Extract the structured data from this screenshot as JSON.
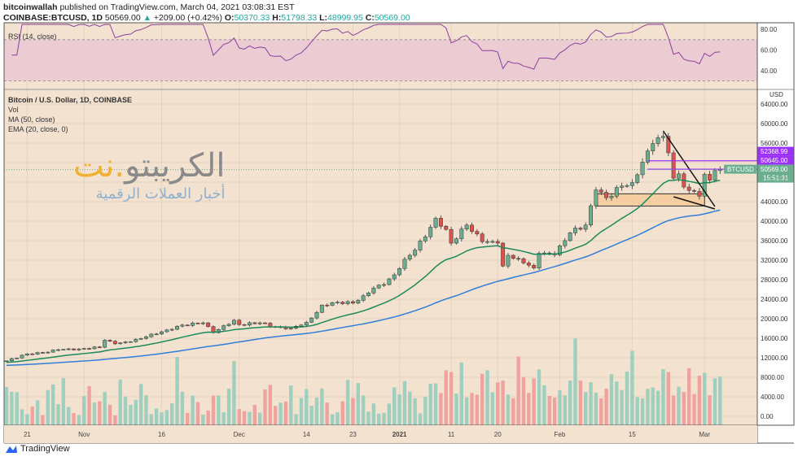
{
  "header": {
    "author": "bitcoinwallah",
    "published": "published on TradingView.com, March 04, 2021 03:08:31 EST",
    "symbol": "COINBASE:BTCUSD, 1D",
    "last": "50569.00",
    "change": "+209.00 (+0.42%)",
    "o_label": "O:",
    "o": "50370.33",
    "h_label": "H:",
    "h": "51798.33",
    "l_label": "L:",
    "l": "48999.95",
    "c_label": "C:",
    "c": "50569.00"
  },
  "legend": {
    "rsi": "RSI (14, close)",
    "title": "Bitcoin / U.S. Dollar, 1D, COINBASE",
    "vol": "Vol",
    "ma": "MA (50, close)",
    "ema": "EMA (20, close, 0)"
  },
  "footer": {
    "brand": "TradingView"
  },
  "watermark": {
    "line1": "الكريبتو.نت",
    "line2": "أخبار العملات الرقمية"
  },
  "colors": {
    "up": "#6aae8f",
    "down": "#d9534f",
    "ma": "#2f7ed8",
    "ema": "#1a8a5a",
    "rsi": "#8e3fa0",
    "marker": "#9b30ff",
    "bg": "#f3e2d0"
  },
  "chart_data": {
    "type": "candlestick",
    "currency": "USD",
    "ylim": [
      0,
      66000
    ],
    "price_ticks": [
      0,
      4000,
      8000,
      12000,
      16000,
      20000,
      24000,
      28000,
      32000,
      36000,
      40000,
      44000,
      48000,
      52000,
      56000,
      60000,
      64000
    ],
    "rsi_ticks": [
      40,
      60,
      80
    ],
    "x_ticks": [
      {
        "date": "2020-10-21",
        "label": "21"
      },
      {
        "date": "2020-11-01",
        "label": "Nov"
      },
      {
        "date": "2020-11-16",
        "label": "16"
      },
      {
        "date": "2020-12-01",
        "label": "Dec"
      },
      {
        "date": "2020-12-14",
        "label": "14"
      },
      {
        "date": "2020-12-23",
        "label": "23"
      },
      {
        "date": "2021-01-01",
        "label": "2021"
      },
      {
        "date": "2021-01-11",
        "label": "11"
      },
      {
        "date": "2021-01-20",
        "label": "20"
      },
      {
        "date": "2021-02-01",
        "label": "Feb"
      },
      {
        "date": "2021-02-15",
        "label": "15"
      },
      {
        "date": "2021-03-01",
        "label": "Mar"
      }
    ],
    "start": "2020-10-17",
    "end": "2021-03-04",
    "close_keypoints": [
      [
        "2020-10-17",
        11360
      ],
      [
        "2020-10-21",
        12800
      ],
      [
        "2020-10-24",
        13000
      ],
      [
        "2020-10-27",
        13650
      ],
      [
        "2020-10-31",
        13800
      ],
      [
        "2020-11-04",
        14150
      ],
      [
        "2020-11-05",
        15600
      ],
      [
        "2020-11-07",
        14850
      ],
      [
        "2020-11-10",
        15300
      ],
      [
        "2020-11-13",
        16300
      ],
      [
        "2020-11-17",
        17700
      ],
      [
        "2020-11-20",
        18700
      ],
      [
        "2020-11-24",
        19150
      ],
      [
        "2020-11-26",
        17150
      ],
      [
        "2020-11-30",
        19700
      ],
      [
        "2020-12-01",
        18800
      ],
      [
        "2020-12-05",
        19150
      ],
      [
        "2020-12-08",
        18300
      ],
      [
        "2020-12-11",
        18050
      ],
      [
        "2020-12-14",
        19270
      ],
      [
        "2020-12-16",
        21300
      ],
      [
        "2020-12-17",
        22800
      ],
      [
        "2020-12-20",
        23400
      ],
      [
        "2020-12-23",
        23200
      ],
      [
        "2020-12-25",
        24700
      ],
      [
        "2020-12-27",
        26300
      ],
      [
        "2020-12-29",
        27000
      ],
      [
        "2020-12-31",
        29000
      ],
      [
        "2021-01-02",
        32200
      ],
      [
        "2021-01-03",
        33000
      ],
      [
        "2021-01-06",
        36800
      ],
      [
        "2021-01-08",
        40600
      ],
      [
        "2021-01-10",
        38300
      ],
      [
        "2021-01-11",
        35500
      ],
      [
        "2021-01-14",
        39200
      ],
      [
        "2021-01-17",
        35800
      ],
      [
        "2021-01-20",
        35500
      ],
      [
        "2021-01-21",
        30800
      ],
      [
        "2021-01-22",
        33000
      ],
      [
        "2021-01-24",
        32300
      ],
      [
        "2021-01-27",
        30400
      ],
      [
        "2021-01-28",
        33400
      ],
      [
        "2021-01-31",
        33100
      ],
      [
        "2021-02-03",
        37600
      ],
      [
        "2021-02-06",
        39200
      ],
      [
        "2021-02-08",
        46400
      ],
      [
        "2021-02-10",
        44800
      ],
      [
        "2021-02-13",
        47200
      ],
      [
        "2021-02-15",
        47900
      ],
      [
        "2021-02-17",
        52100
      ],
      [
        "2021-02-19",
        55900
      ],
      [
        "2021-02-21",
        57400
      ],
      [
        "2021-02-22",
        54000
      ],
      [
        "2021-02-23",
        48800
      ],
      [
        "2021-02-24",
        49700
      ],
      [
        "2021-02-25",
        47000
      ],
      [
        "2021-02-26",
        46300
      ],
      [
        "2021-02-27",
        46100
      ],
      [
        "2021-02-28",
        45100
      ],
      [
        "2021-03-01",
        49600
      ],
      [
        "2021-03-02",
        48400
      ],
      [
        "2021-03-03",
        50370
      ],
      [
        "2021-03-04",
        50569
      ]
    ],
    "price_lines": [
      {
        "label": "52368.99",
        "value": 52368.99,
        "color": "#9b30ff"
      },
      {
        "label": "50645.00",
        "value": 50645.0,
        "color": "#9b30ff"
      }
    ],
    "last_price": {
      "symbol": "BTCUSD",
      "label": "50569.00",
      "countdown": "15:51:31",
      "value": 50569
    },
    "zone": {
      "from": "2021-02-08",
      "to": "2021-03-01",
      "low": 43100,
      "high": 45600
    },
    "trendlines": [
      [
        [
          "2021-02-21",
          58500
        ],
        [
          "2021-03-03",
          43000
        ]
      ],
      [
        [
          "2021-02-23",
          45000
        ],
        [
          "2021-03-03",
          42500
        ]
      ]
    ]
  }
}
